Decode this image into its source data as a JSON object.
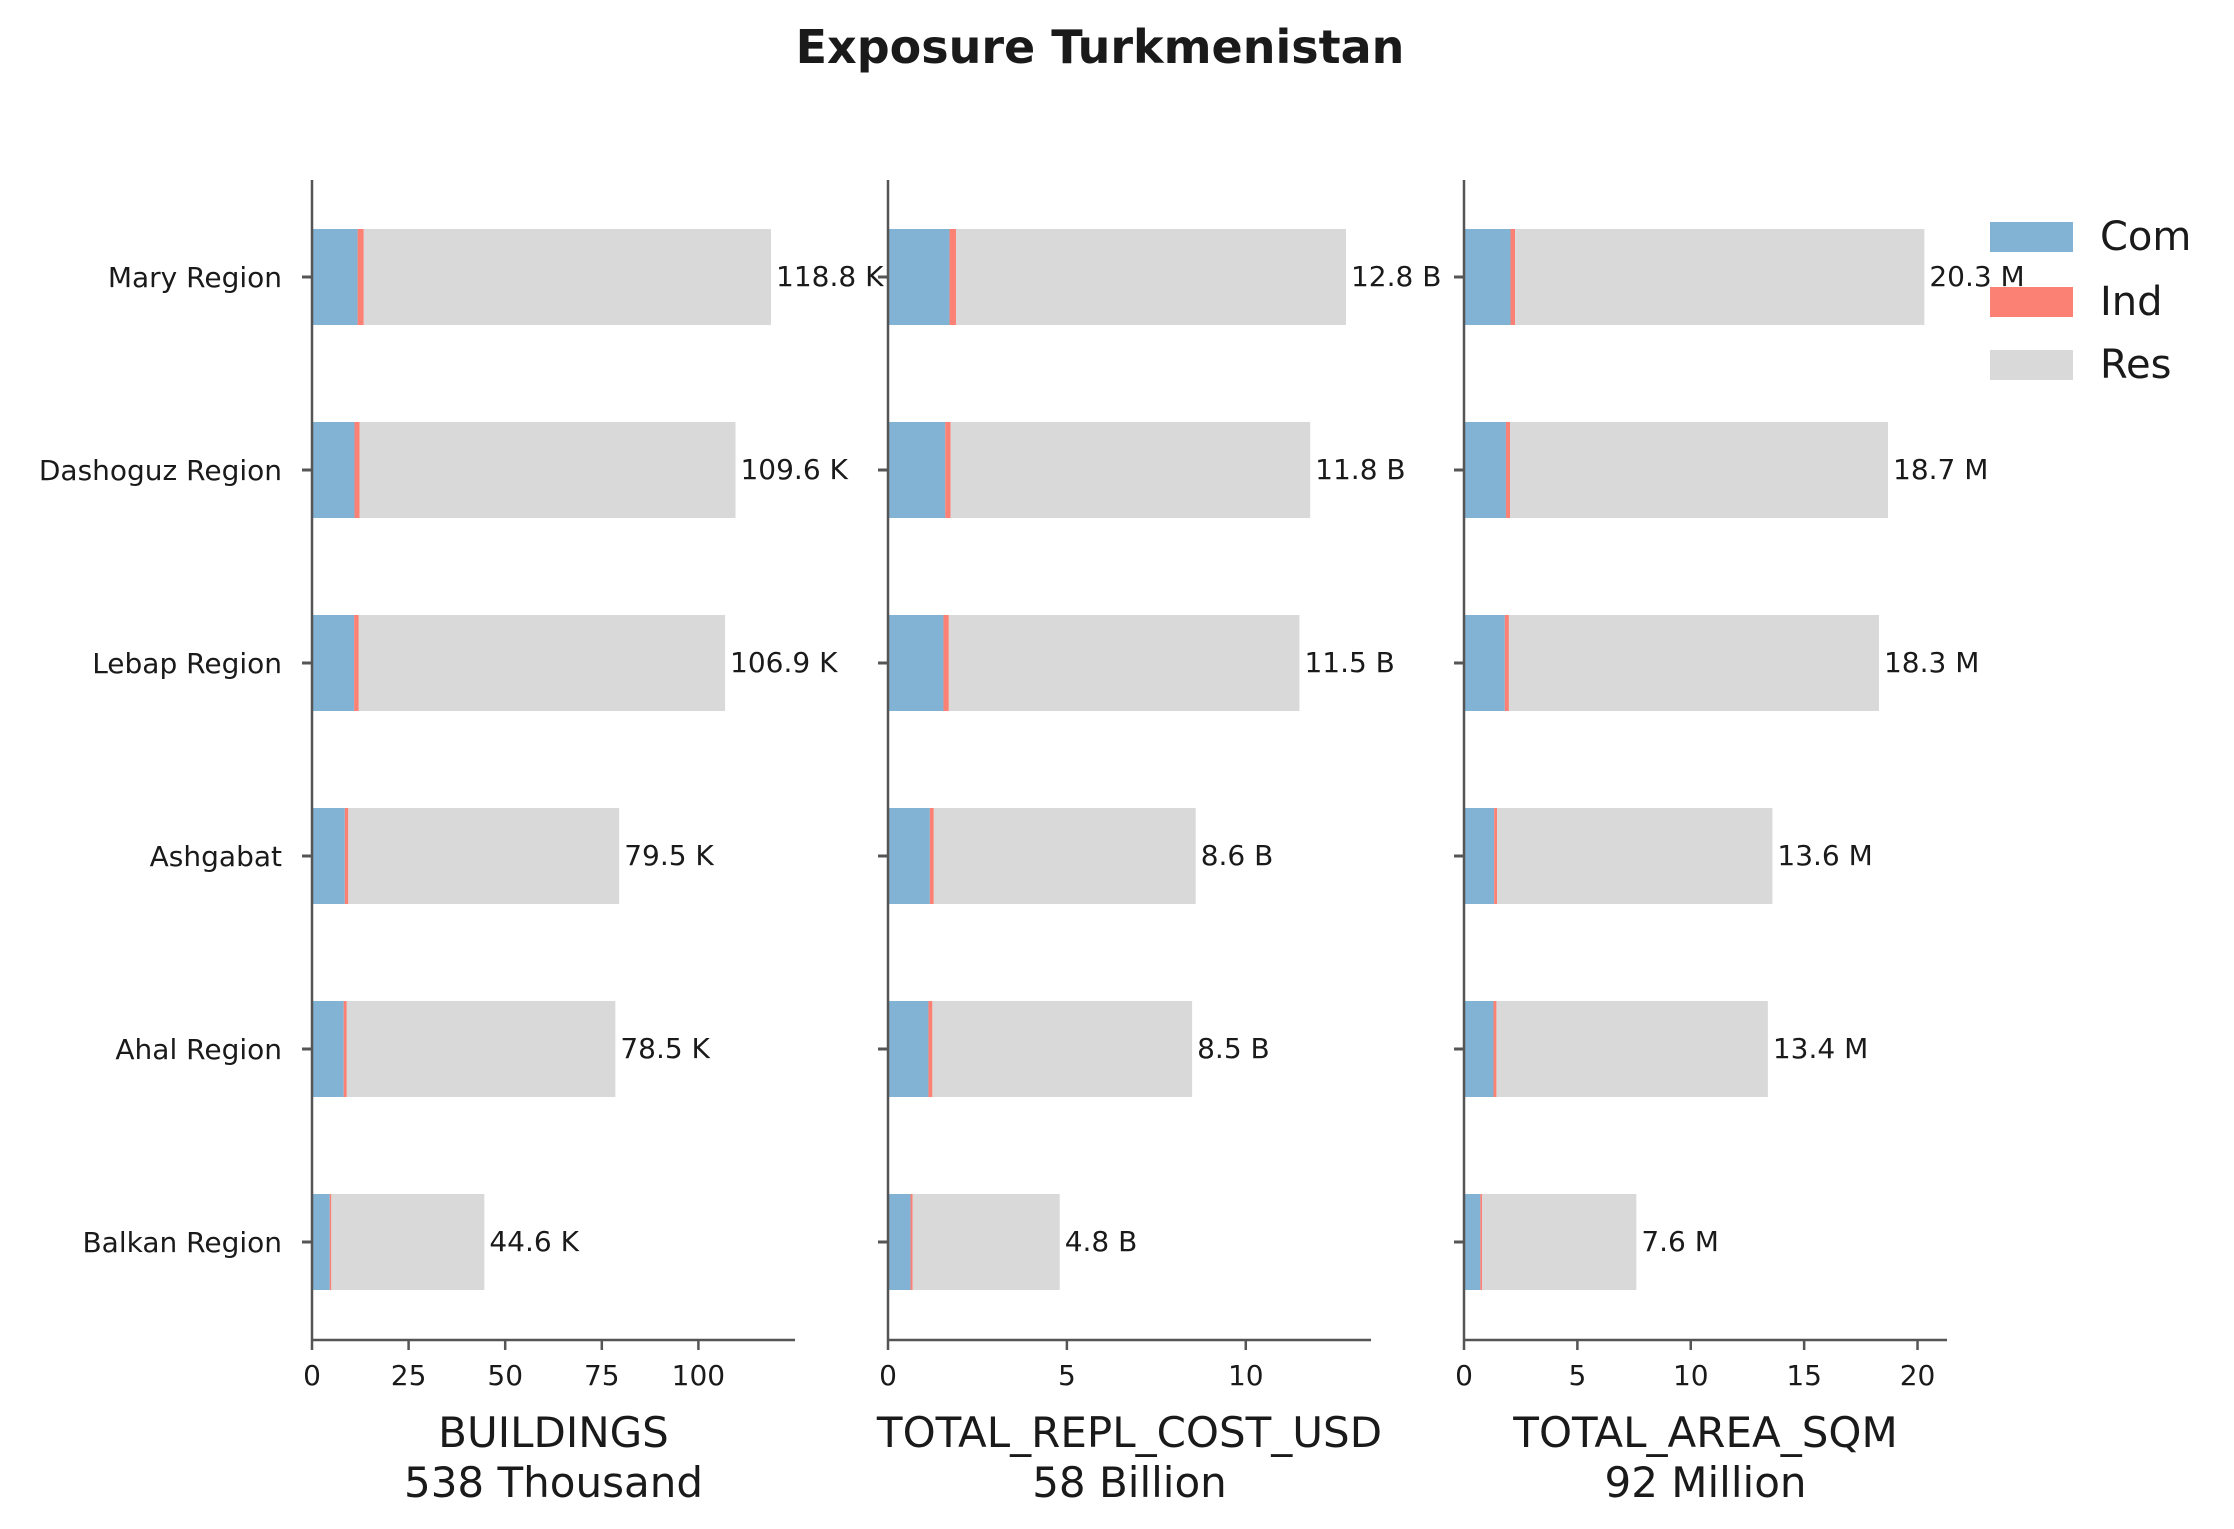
{
  "chart_data": {
    "type": "bar",
    "orientation": "horizontal",
    "stacked": true,
    "title": "Exposure Turkmenistan",
    "categories": [
      "Mary Region",
      "Dashoguz Region",
      "Lebap Region",
      "Ashgabat",
      "Ahal Region",
      "Balkan Region"
    ],
    "legend": {
      "placement": "top-right",
      "entries": [
        {
          "name": "Com",
          "color": "#82b2d4"
        },
        {
          "name": "Ind",
          "color": "#fa8174"
        },
        {
          "name": "Res",
          "color": "#d9d9d9"
        }
      ]
    },
    "panels": [
      {
        "xlabel": "BUILDINGS",
        "subtitle": "538 Thousand",
        "xlim": [
          0,
          125
        ],
        "xticks": [
          0,
          25,
          50,
          75,
          100
        ],
        "series": [
          {
            "name": "Com",
            "values": [
              11.8,
              11.0,
              10.9,
              8.5,
              8.2,
              4.6
            ]
          },
          {
            "name": "Ind",
            "values": [
              1.6,
              1.3,
              1.2,
              0.9,
              0.8,
              0.4
            ]
          },
          {
            "name": "Res",
            "values": [
              105.4,
              97.3,
              94.8,
              70.1,
              69.5,
              39.6
            ]
          }
        ],
        "totals": [
          118.8,
          109.6,
          106.9,
          79.5,
          78.5,
          44.6
        ],
        "labels": [
          "118.8 K",
          "109.6 K",
          "106.9 K",
          "79.5 K",
          "78.5 K",
          "44.6 K"
        ]
      },
      {
        "xlabel": "TOTAL_REPL_COST_USD",
        "subtitle": "58 Billion",
        "xlim": [
          0,
          13.5
        ],
        "xticks": [
          0,
          5,
          10
        ],
        "series": [
          {
            "name": "Com",
            "values": [
              1.72,
              1.6,
              1.55,
              1.17,
              1.13,
              0.63
            ]
          },
          {
            "name": "Ind",
            "values": [
              0.18,
              0.15,
              0.15,
              0.11,
              0.11,
              0.06
            ]
          },
          {
            "name": "Res",
            "values": [
              10.9,
              10.05,
              9.8,
              7.32,
              7.26,
              4.11
            ]
          }
        ],
        "totals": [
          12.8,
          11.8,
          11.5,
          8.6,
          8.5,
          4.8
        ],
        "labels": [
          "12.8 B",
          "11.8 B",
          "11.5 B",
          "8.6 B",
          "8.5 B",
          "4.8 B"
        ]
      },
      {
        "xlabel": "TOTAL_AREA_SQM",
        "subtitle": "92 Million",
        "xlim": [
          0,
          21.3
        ],
        "xticks": [
          0,
          5,
          10,
          15,
          20
        ],
        "series": [
          {
            "name": "Com",
            "values": [
              2.05,
              1.85,
              1.8,
              1.33,
              1.3,
              0.72
            ]
          },
          {
            "name": "Ind",
            "values": [
              0.2,
              0.18,
              0.18,
              0.13,
              0.13,
              0.08
            ]
          },
          {
            "name": "Res",
            "values": [
              18.05,
              16.67,
              16.32,
              12.14,
              11.97,
              6.8
            ]
          }
        ],
        "totals": [
          20.3,
          18.7,
          18.3,
          13.6,
          13.4,
          7.6
        ],
        "labels": [
          "20.3 M",
          "18.7 M",
          "18.3 M",
          "13.6 M",
          "13.4 M",
          "7.6 M"
        ]
      }
    ]
  }
}
